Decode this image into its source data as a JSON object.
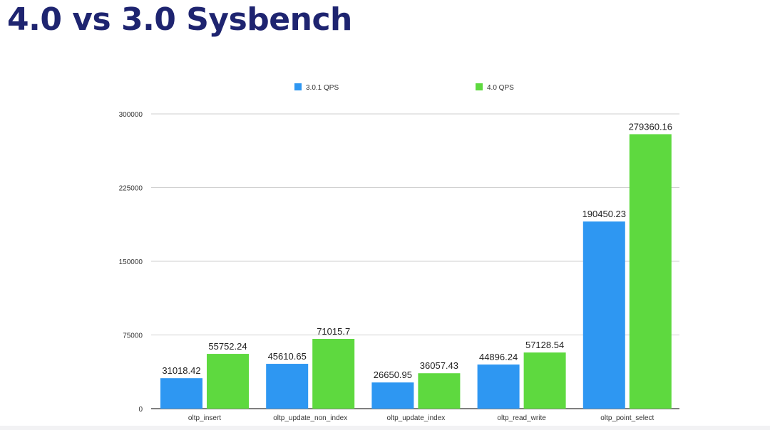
{
  "slide": {
    "title": "4.0 vs 3.0 Sysbench"
  },
  "chart_data": {
    "type": "bar",
    "title": "",
    "xlabel": "",
    "ylabel": "",
    "categories": [
      "oltp_insert",
      "oltp_update_non_index",
      "oltp_update_index",
      "oltp_read_write",
      "oltp_point_select"
    ],
    "series": [
      {
        "name": "3.0.1 QPS",
        "color": "#2e97f2",
        "values": [
          31018.42,
          45610.65,
          26650.95,
          44896.24,
          190450.23
        ],
        "labels": [
          "31018.42",
          "45610.65",
          "26650.95",
          "44896.24",
          "190450.23"
        ]
      },
      {
        "name": "4.0 QPS",
        "color": "#5ed93f",
        "values": [
          55752.24,
          71015.7,
          36057.43,
          57128.54,
          279360.16
        ],
        "labels": [
          "55752.24",
          "71015.7",
          "36057.43",
          "57128.54",
          "279360.16"
        ]
      }
    ],
    "ylim": [
      0,
      300000
    ],
    "yticks": [
      "0",
      "75000",
      "150000",
      "225000",
      "300000"
    ],
    "grid": true,
    "legend": "top"
  }
}
